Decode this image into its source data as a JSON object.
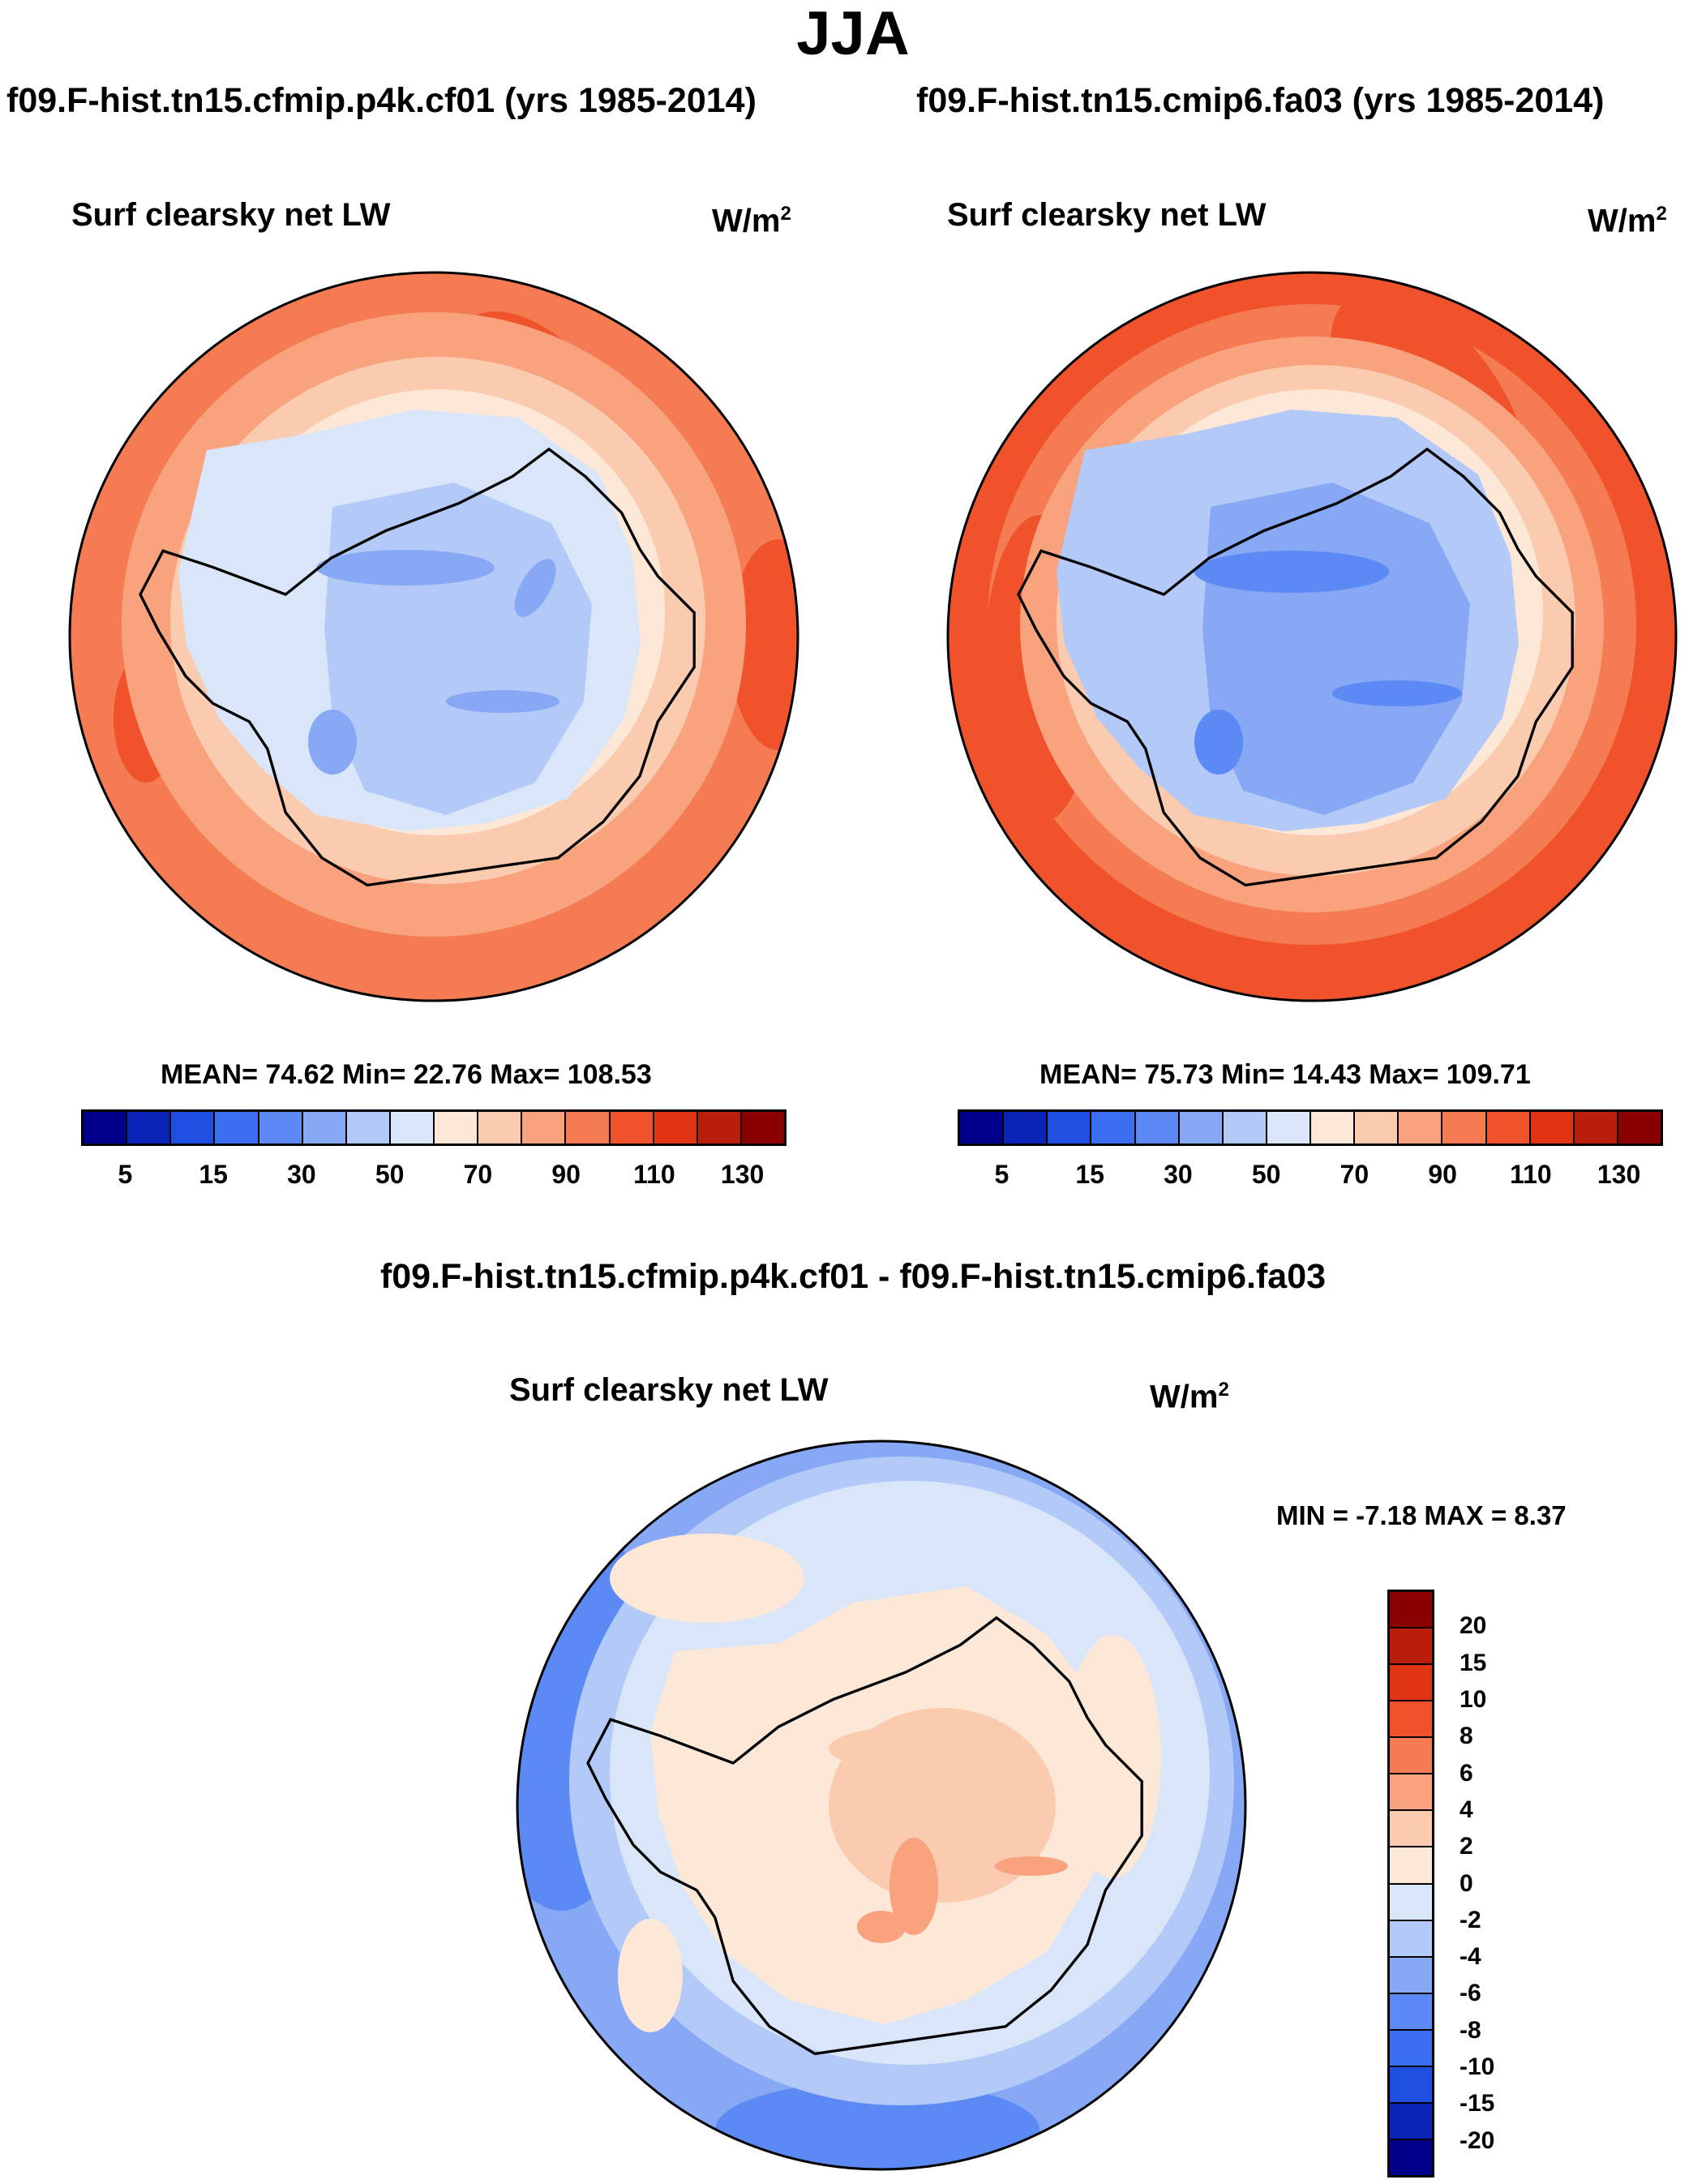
{
  "title": "JJA",
  "panels": [
    {
      "run_title": "f09.F-hist.tn15.cfmip.p4k.cf01 (yrs 1985-2014)",
      "variable": "Surf clearsky net LW",
      "units_base": "W/m",
      "units_exp": "2",
      "stats": "MEAN=  74.62  Min=  22.76  Max= 108.53"
    },
    {
      "run_title": "f09.F-hist.tn15.cmip6.fa03 (yrs 1985-2014)",
      "variable": "Surf clearsky net LW",
      "units_base": "W/m",
      "units_exp": "2",
      "stats": "MEAN=  75.73  Min=  14.43  Max= 109.71"
    }
  ],
  "diff": {
    "title": "f09.F-hist.tn15.cfmip.p4k.cf01 - f09.F-hist.tn15.cmip6.fa03",
    "variable": "Surf clearsky net LW",
    "units_base": "W/m",
    "units_exp": "2",
    "stats": "MIN =  -7.18 MAX =   8.37"
  },
  "colorbar_abs": {
    "colors": [
      "#00008a",
      "#0a24b8",
      "#1e4fe0",
      "#3c6ef0",
      "#5b8af5",
      "#86a8f5",
      "#b3c9f7",
      "#d9e6fa",
      "#fde8d8",
      "#fbcbb0",
      "#f8a37e",
      "#f57b52",
      "#f0532c",
      "#de3414",
      "#b81e0a",
      "#8a0000"
    ],
    "tick_labels": [
      "5",
      "15",
      "30",
      "50",
      "70",
      "90",
      "110",
      "130"
    ]
  },
  "colorbar_diff": {
    "colors": [
      "#8a0000",
      "#b81e0a",
      "#de3414",
      "#f0532c",
      "#f57b52",
      "#f8a37e",
      "#fbcbb0",
      "#fde8d8",
      "#d9e6fa",
      "#b3c9f7",
      "#86a8f5",
      "#5b8af5",
      "#3c6ef0",
      "#1e4fe0",
      "#0a24b8",
      "#00008a"
    ],
    "tick_labels": [
      "20",
      "15",
      "10",
      "8",
      "6",
      "4",
      "2",
      "0",
      "-2",
      "-4",
      "-6",
      "-8",
      "-10",
      "-15",
      "-20"
    ]
  }
}
